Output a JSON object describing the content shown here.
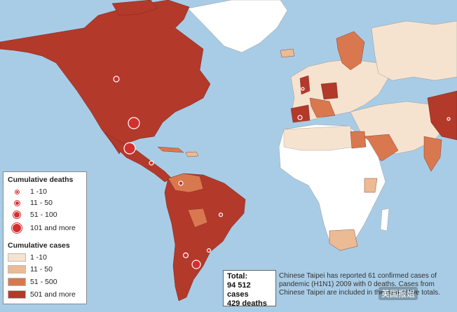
{
  "legend_deaths": {
    "title": "Cumulative deaths",
    "items": [
      {
        "label": "1 -10"
      },
      {
        "label": "11 - 50"
      },
      {
        "label": "51 - 100"
      },
      {
        "label": "101 and more"
      }
    ]
  },
  "legend_cases": {
    "title": "Cumulative cases",
    "items": [
      {
        "label": "1 -10",
        "color": "#f6e3cf"
      },
      {
        "label": "11 - 50",
        "color": "#ecbb93"
      },
      {
        "label": "51 - 500",
        "color": "#d9784e"
      },
      {
        "label": "501 and more",
        "color": "#b3392b"
      }
    ]
  },
  "totals": {
    "label": "Total:",
    "cases": "94 512 cases",
    "deaths": "429 deaths"
  },
  "note": "Chinese Taipei has reported 61 confirmed cases of pandemic (H1N1) 2009 with 0 deaths. Cases from Chinese Taipei are included in the cumulative totals.",
  "watermark": "英国报姐",
  "colors": {
    "ocean": "#a8cce6",
    "no_cases": "#ffffff",
    "cases_1_10": "#f6e3cf",
    "cases_11_50": "#ecbb93",
    "cases_51_500": "#d9784e",
    "cases_501_plus": "#b3392b",
    "death_marker": "#d32f2f"
  }
}
